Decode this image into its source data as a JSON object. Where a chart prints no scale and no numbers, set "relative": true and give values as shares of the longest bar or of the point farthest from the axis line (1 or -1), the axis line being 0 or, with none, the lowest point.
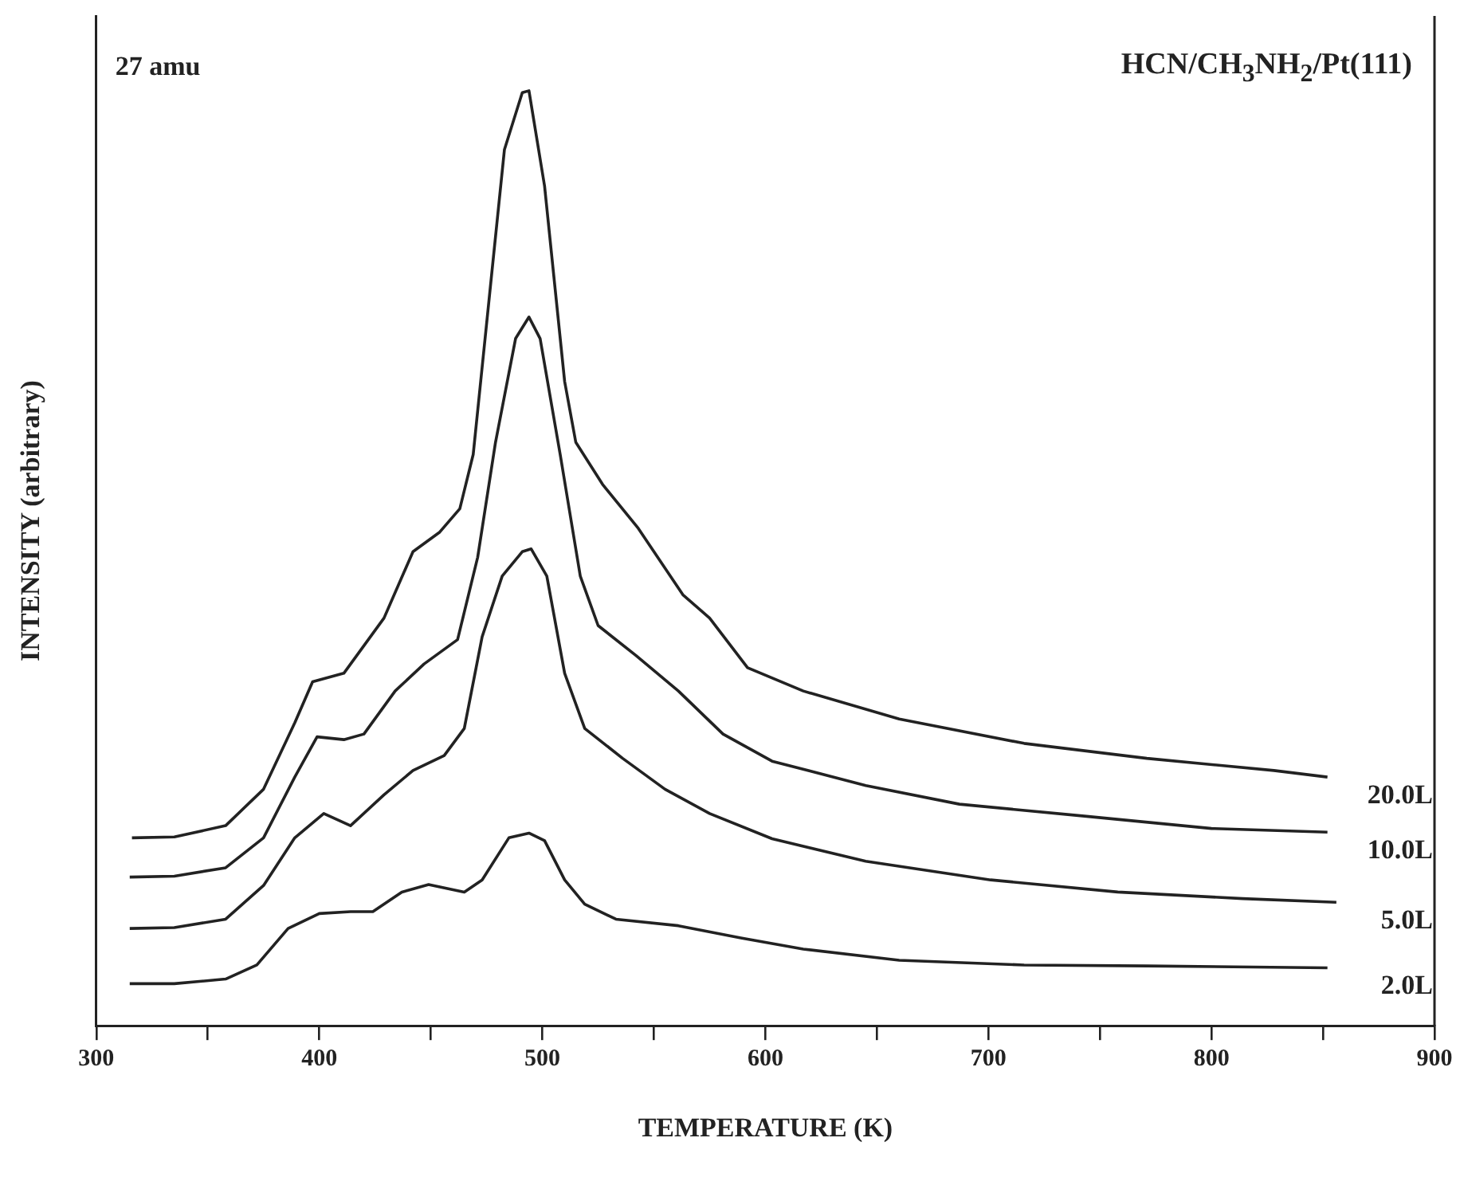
{
  "chart_data": {
    "type": "line",
    "relative": true,
    "title": "HCN/CH$_{3}$NH$_{2}$/Pt(111)",
    "annotations": [
      "27 amu"
    ],
    "xlabel": "TEMPERATURE (K)",
    "ylabel": "INTENSITY (arbitrary)",
    "xlim": [
      300,
      900
    ],
    "xticks": [
      300,
      {
        "value": 350,
        "label": null
      },
      400,
      {
        "value": 450,
        "label": null
      },
      500,
      {
        "value": 550,
        "label": null
      },
      600,
      {
        "value": 650,
        "label": null
      },
      700,
      {
        "value": 750,
        "label": null
      },
      800,
      {
        "value": 850,
        "label": null
      },
      900
    ],
    "grid": false,
    "legend": false,
    "marker": "none",
    "line_style": "solid",
    "tick_labels": "x",
    "series": [
      {
        "name": "20.0L",
        "color": "#222222",
        "x": [
          316,
          335,
          358,
          375,
          389,
          397,
          411,
          429,
          442,
          454,
          463,
          469,
          476,
          483,
          491,
          494,
          501,
          510,
          515,
          527,
          543,
          563,
          575,
          592,
          617,
          660,
          716,
          771,
          828,
          852
        ],
        "values": [
          0.201,
          0.202,
          0.214,
          0.253,
          0.324,
          0.368,
          0.377,
          0.436,
          0.507,
          0.528,
          0.553,
          0.611,
          0.774,
          0.937,
          0.998,
          1,
          0.898,
          0.689,
          0.624,
          0.579,
          0.532,
          0.461,
          0.436,
          0.383,
          0.358,
          0.328,
          0.302,
          0.286,
          0.273,
          0.266
        ]
      },
      {
        "name": "10.0L",
        "color": "#222222",
        "x": [
          315,
          335,
          358,
          375,
          389,
          399,
          411,
          420,
          434,
          447,
          462,
          471,
          479,
          488,
          494,
          499,
          508,
          517,
          525,
          542,
          561,
          581,
          603,
          645,
          687,
          744,
          800,
          852
        ],
        "values": [
          0.159,
          0.16,
          0.169,
          0.201,
          0.266,
          0.309,
          0.306,
          0.312,
          0.358,
          0.387,
          0.413,
          0.501,
          0.624,
          0.735,
          0.758,
          0.735,
          0.611,
          0.481,
          0.428,
          0.396,
          0.358,
          0.312,
          0.283,
          0.257,
          0.237,
          0.224,
          0.211,
          0.207
        ]
      },
      {
        "name": "5.0L",
        "color": "#222222",
        "x": [
          315,
          335,
          358,
          375,
          389,
          402,
          414,
          429,
          442,
          456,
          465,
          473,
          482,
          491,
          495,
          502,
          510,
          519,
          536,
          555,
          575,
          603,
          645,
          701,
          758,
          814,
          856
        ],
        "values": [
          0.104,
          0.105,
          0.114,
          0.15,
          0.201,
          0.227,
          0.214,
          0.247,
          0.273,
          0.289,
          0.318,
          0.416,
          0.481,
          0.507,
          0.51,
          0.481,
          0.377,
          0.318,
          0.286,
          0.253,
          0.227,
          0.2,
          0.176,
          0.156,
          0.143,
          0.136,
          0.132
        ]
      },
      {
        "name": "2.0L",
        "color": "#222222",
        "x": [
          315,
          335,
          358,
          372,
          386,
          400,
          414,
          424,
          437,
          449,
          465,
          473,
          485,
          494,
          501,
          510,
          519,
          533,
          561,
          589,
          617,
          660,
          716,
          771,
          852
        ],
        "values": [
          0.045,
          0.045,
          0.05,
          0.065,
          0.104,
          0.12,
          0.122,
          0.122,
          0.143,
          0.151,
          0.143,
          0.156,
          0.201,
          0.206,
          0.198,
          0.156,
          0.13,
          0.114,
          0.107,
          0.094,
          0.082,
          0.07,
          0.065,
          0.064,
          0.062
        ]
      }
    ]
  }
}
